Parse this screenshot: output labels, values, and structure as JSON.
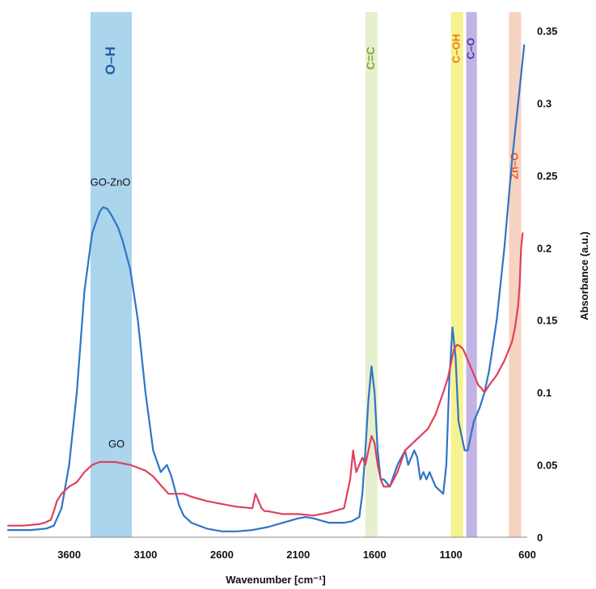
{
  "chart_data": {
    "type": "line",
    "xlabel": "Wavenumber [cm⁻¹]",
    "ylabel": "Absorbance (a.u.)",
    "xlim": [
      4000,
      600
    ],
    "ylim": [
      0,
      0.35
    ],
    "x_ticks": [
      3600,
      3100,
      2600,
      2100,
      1600,
      1100,
      600
    ],
    "y_ticks": [
      0,
      0.05,
      0.1,
      0.15,
      0.2,
      0.25,
      0.3,
      0.35
    ],
    "y_tick_labels": [
      "0",
      "0.05",
      "0.1",
      "0.15",
      "0.2",
      "0.25",
      "0.3",
      "0.35"
    ],
    "bands": [
      {
        "label": "O–H",
        "from": 3460,
        "to": 3190,
        "color": "#9ccdea",
        "text_color": "#1f5fa8"
      },
      {
        "label": "C=C",
        "from": 1660,
        "to": 1580,
        "color": "#e2edc6",
        "text_color": "#8aa632"
      },
      {
        "label": "C–OH",
        "from": 1100,
        "to": 1020,
        "color": "#f4f07a",
        "text_color": "#e87d18"
      },
      {
        "label": "C–O",
        "from": 1000,
        "to": 930,
        "color": "#b7a6e0",
        "text_color": "#4a3aa6"
      },
      {
        "label": "Zn–O",
        "from": 720,
        "to": 640,
        "color": "#f6cbb8",
        "text_color": "#e8582a"
      }
    ],
    "series": [
      {
        "name": "GO-ZnO",
        "color": "#2f74c6",
        "x": [
          4000,
          3850,
          3750,
          3700,
          3650,
          3600,
          3550,
          3500,
          3450,
          3400,
          3380,
          3350,
          3320,
          3280,
          3250,
          3200,
          3150,
          3100,
          3050,
          3000,
          2960,
          2930,
          2900,
          2880,
          2850,
          2800,
          2700,
          2600,
          2500,
          2400,
          2300,
          2200,
          2100,
          2050,
          2000,
          1900,
          1800,
          1750,
          1700,
          1680,
          1660,
          1640,
          1620,
          1600,
          1580,
          1560,
          1540,
          1500,
          1450,
          1400,
          1380,
          1360,
          1340,
          1320,
          1300,
          1280,
          1260,
          1240,
          1220,
          1200,
          1150,
          1130,
          1110,
          1090,
          1070,
          1050,
          1030,
          1010,
          990,
          970,
          950,
          930,
          910,
          880,
          850,
          800,
          750,
          700,
          650,
          620
        ],
        "y": [
          0.005,
          0.005,
          0.006,
          0.008,
          0.02,
          0.05,
          0.1,
          0.17,
          0.21,
          0.225,
          0.228,
          0.227,
          0.222,
          0.214,
          0.205,
          0.185,
          0.15,
          0.1,
          0.06,
          0.045,
          0.05,
          0.042,
          0.03,
          0.022,
          0.015,
          0.01,
          0.006,
          0.004,
          0.004,
          0.005,
          0.007,
          0.01,
          0.013,
          0.014,
          0.013,
          0.01,
          0.01,
          0.011,
          0.014,
          0.03,
          0.06,
          0.095,
          0.118,
          0.1,
          0.06,
          0.04,
          0.04,
          0.035,
          0.05,
          0.06,
          0.05,
          0.055,
          0.06,
          0.055,
          0.04,
          0.045,
          0.04,
          0.045,
          0.04,
          0.035,
          0.03,
          0.05,
          0.11,
          0.145,
          0.125,
          0.08,
          0.07,
          0.06,
          0.06,
          0.07,
          0.08,
          0.085,
          0.09,
          0.1,
          0.115,
          0.15,
          0.2,
          0.26,
          0.31,
          0.34
        ]
      },
      {
        "name": "GO",
        "color": "#e0405e",
        "x": [
          4000,
          3900,
          3800,
          3760,
          3720,
          3700,
          3680,
          3650,
          3620,
          3600,
          3550,
          3500,
          3450,
          3400,
          3350,
          3300,
          3250,
          3200,
          3150,
          3100,
          3050,
          3000,
          2950,
          2900,
          2850,
          2800,
          2700,
          2600,
          2500,
          2400,
          2380,
          2360,
          2340,
          2320,
          2300,
          2200,
          2100,
          2000,
          1900,
          1800,
          1760,
          1740,
          1720,
          1700,
          1680,
          1660,
          1640,
          1620,
          1600,
          1580,
          1560,
          1540,
          1500,
          1450,
          1400,
          1350,
          1300,
          1250,
          1200,
          1150,
          1120,
          1100,
          1080,
          1060,
          1040,
          1020,
          1000,
          980,
          960,
          940,
          920,
          900,
          880,
          850,
          800,
          750,
          700,
          680,
          660,
          650,
          640,
          630
        ],
        "y": [
          0.008,
          0.008,
          0.009,
          0.01,
          0.012,
          0.018,
          0.025,
          0.03,
          0.033,
          0.035,
          0.038,
          0.045,
          0.05,
          0.052,
          0.052,
          0.052,
          0.051,
          0.05,
          0.048,
          0.046,
          0.042,
          0.036,
          0.03,
          0.03,
          0.03,
          0.028,
          0.025,
          0.023,
          0.021,
          0.02,
          0.03,
          0.025,
          0.02,
          0.018,
          0.018,
          0.016,
          0.016,
          0.015,
          0.017,
          0.02,
          0.04,
          0.06,
          0.045,
          0.05,
          0.055,
          0.05,
          0.06,
          0.07,
          0.065,
          0.05,
          0.04,
          0.035,
          0.035,
          0.045,
          0.06,
          0.065,
          0.07,
          0.075,
          0.085,
          0.1,
          0.11,
          0.12,
          0.13,
          0.133,
          0.132,
          0.13,
          0.125,
          0.12,
          0.115,
          0.11,
          0.105,
          0.103,
          0.1,
          0.105,
          0.112,
          0.122,
          0.135,
          0.145,
          0.16,
          0.175,
          0.2,
          0.21
        ]
      }
    ]
  }
}
